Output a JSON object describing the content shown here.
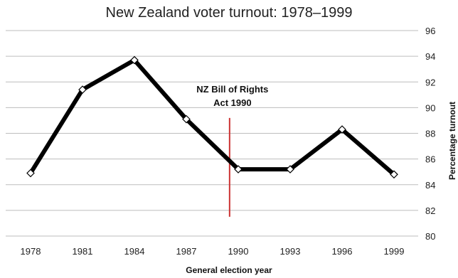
{
  "chart_data": {
    "type": "line",
    "title": "New Zealand voter turnout: 1978–1999",
    "xlabel": "General election year",
    "ylabel": "Percentage turnout",
    "categories": [
      "1978",
      "1981",
      "1984",
      "1987",
      "1990",
      "1993",
      "1996",
      "1999"
    ],
    "series": [
      {
        "values": [
          84.9,
          91.4,
          93.7,
          89.1,
          85.2,
          85.2,
          88.3,
          84.8
        ]
      }
    ],
    "ylim": [
      80,
      96
    ],
    "yticks": [
      "80",
      "82",
      "84",
      "86",
      "88",
      "90",
      "92",
      "94",
      "96"
    ],
    "y_axis_side": "right",
    "grid": true,
    "legend": "none",
    "annotation": {
      "lines": [
        "NZ Bill of Rights",
        "Act 1990"
      ],
      "x_value": 1989.5,
      "y_range": [
        81.5,
        89.2
      ],
      "color": "#cc3333"
    },
    "colors": {
      "line": "#000000",
      "grid": "#bdbdbd",
      "marker_fill": "#ffffff"
    }
  }
}
